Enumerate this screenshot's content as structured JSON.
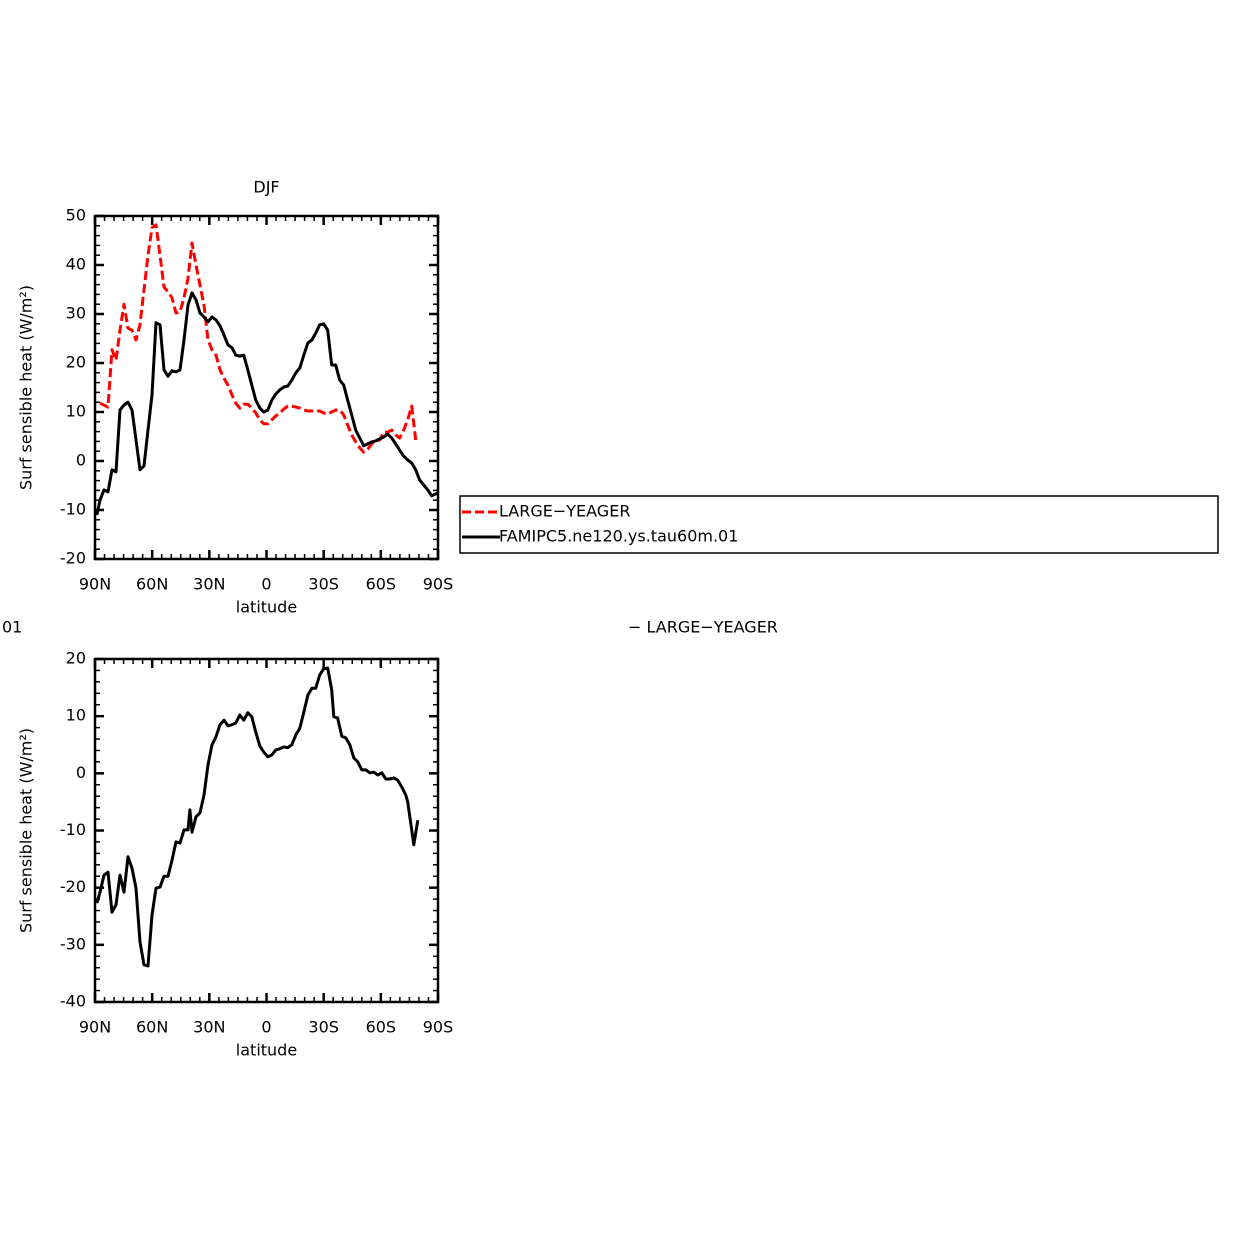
{
  "chart_data": [
    {
      "type": "line",
      "title": "DJF",
      "xlabel": "latitude",
      "ylabel": "Surf sensible heat (W/m²)",
      "xlim": [
        90,
        -90
      ],
      "ylim": [
        -20,
        50
      ],
      "xticks": [
        {
          "value": 90,
          "label": "90N"
        },
        {
          "value": 60,
          "label": "60N"
        },
        {
          "value": 30,
          "label": "30N"
        },
        {
          "value": 0,
          "label": "0"
        },
        {
          "value": -30,
          "label": "30S"
        },
        {
          "value": -60,
          "label": "60S"
        },
        {
          "value": -90,
          "label": "90S"
        }
      ],
      "yticks": [
        -20,
        -10,
        0,
        10,
        20,
        30,
        40,
        50
      ],
      "legend": "right",
      "series": [
        {
          "name": "LARGE−YEAGER",
          "color": "#ff0000",
          "dash": true,
          "x": [
            87.4,
            83.2,
            81.1,
            79,
            76.9,
            74.8,
            72.7,
            70.6,
            68.5,
            66.4,
            64.3,
            62.2,
            60.1,
            58,
            55.9,
            53.8,
            51.7,
            49.6,
            47.5,
            45.4,
            43.3,
            41.2,
            39.1,
            37,
            34.9,
            32.8,
            30.7,
            28.6,
            26.5,
            24.4,
            22.3,
            20.2,
            18.1,
            16.1,
            14,
            11.9,
            9.8,
            7.7,
            5.6,
            3.5,
            1.4,
            -0.7,
            -2.8,
            -4.9,
            -7,
            -9.1,
            -11.2,
            -13.3,
            -15.4,
            -17.5,
            -19.6,
            -21.7,
            -23.8,
            -25.8,
            -27.9,
            -30,
            -32.1,
            -34.2,
            -36.3,
            -38.4,
            -40.5,
            -42.6,
            -44.7,
            -46.8,
            -48.9,
            -51,
            -53.1,
            -55.2,
            -57.3,
            -59.4,
            -61.5,
            -63.6,
            -65.7,
            -67.8,
            -69.9,
            -72,
            -74.1,
            -76.2,
            -78.3
          ],
          "values": [
            11.8,
            11,
            22.7,
            20.6,
            26.7,
            32,
            27.1,
            26.7,
            24.7,
            27.8,
            34.9,
            42,
            47.6,
            48.2,
            42,
            35.5,
            34.5,
            33.3,
            30.2,
            30.4,
            33.3,
            37.3,
            44.5,
            40,
            35.9,
            31.8,
            24.7,
            22.7,
            21.6,
            18.6,
            16.9,
            15.5,
            13.5,
            11.8,
            10.8,
            11.6,
            11.6,
            10.8,
            9.8,
            8.4,
            7.6,
            7.6,
            8.4,
            9.2,
            9.8,
            10.6,
            11.2,
            11.2,
            11,
            10.8,
            10.4,
            10.2,
            10.2,
            10.2,
            10.2,
            9.8,
            9.6,
            10,
            10.4,
            10.4,
            9.4,
            7.3,
            5.3,
            3.9,
            2.7,
            1.8,
            2.4,
            3.5,
            4.1,
            4.3,
            5.9,
            5.9,
            6.3,
            5.3,
            4.7,
            6.3,
            8.4,
            11.2,
            4.3
          ]
        },
        {
          "name": "FAMIPC5.ne120.ys.tau60m.01",
          "color": "#000000",
          "dash": false,
          "x": [
            89,
            87.4,
            85.3,
            83.2,
            81.1,
            79,
            76.9,
            74.8,
            72.7,
            70.6,
            68.5,
            66.4,
            64.3,
            62.2,
            60.1,
            58,
            55.9,
            53.8,
            51.7,
            49.6,
            47.5,
            45.4,
            43.3,
            41.2,
            39.1,
            37,
            34.9,
            32.8,
            30.7,
            28.6,
            26.5,
            24.4,
            22.3,
            20.2,
            18.1,
            16.1,
            14,
            11.9,
            9.8,
            7.7,
            5.6,
            3.5,
            1.4,
            -0.7,
            -2.8,
            -4.9,
            -7,
            -9.1,
            -11.2,
            -13.3,
            -15.4,
            -17.5,
            -19.6,
            -21.7,
            -23.8,
            -25.8,
            -27.9,
            -30,
            -32.1,
            -34.2,
            -36.3,
            -38.4,
            -40.5,
            -42.6,
            -44.7,
            -46.8,
            -48.9,
            -51,
            -53.1,
            -55.2,
            -57.3,
            -59.4,
            -61.5,
            -63.6,
            -65.7,
            -67.8,
            -69.9,
            -72,
            -74.1,
            -76.2,
            -78.3,
            -80.4,
            -82.5,
            -84.6,
            -86.7,
            -90
          ],
          "values": [
            -11,
            -8,
            -5.9,
            -6.3,
            -1.8,
            -2.2,
            10.4,
            11.4,
            12,
            10.4,
            4.3,
            -1.8,
            -1,
            6.3,
            13.5,
            28.2,
            27.8,
            18.6,
            17.3,
            18.4,
            18.2,
            18.6,
            24.7,
            31.8,
            34.3,
            32.9,
            30.2,
            29.4,
            28.4,
            29.4,
            28.8,
            27.6,
            25.7,
            23.7,
            23.1,
            21.6,
            21.4,
            21.6,
            18.6,
            15.5,
            12.4,
            10.8,
            10,
            10.4,
            12.4,
            13.7,
            14.5,
            15.1,
            15.3,
            16.5,
            18,
            19,
            21.6,
            24.1,
            24.7,
            26.1,
            27.8,
            28,
            26.7,
            19.6,
            19.6,
            16.5,
            15.5,
            12.4,
            9.4,
            6.3,
            4.7,
            3.1,
            3.5,
            3.9,
            4.1,
            4.5,
            4.9,
            5.5,
            4.7,
            3.5,
            2.2,
            1,
            0.2,
            -0.4,
            -1.8,
            -3.9,
            -4.9,
            -5.9,
            -7.1,
            -6.5
          ]
        }
      ]
    },
    {
      "type": "line",
      "title": "01",
      "right_title": "− LARGE−YEAGER",
      "xlabel": "latitude",
      "ylabel": "Surf sensible heat (W/m²)",
      "xlim": [
        90,
        -90
      ],
      "ylim": [
        -40,
        20
      ],
      "xticks": [
        {
          "value": 90,
          "label": "90N"
        },
        {
          "value": 60,
          "label": "60N"
        },
        {
          "value": 30,
          "label": "30N"
        },
        {
          "value": 0,
          "label": "0"
        },
        {
          "value": -30,
          "label": "30S"
        },
        {
          "value": -60,
          "label": "60S"
        },
        {
          "value": -90,
          "label": "90S"
        }
      ],
      "yticks": [
        -40,
        -30,
        -20,
        -10,
        0,
        10,
        20
      ],
      "series": [
        {
          "color": "#000000",
          "dash": false,
          "x": [
            89,
            87.4,
            85.3,
            83.2,
            81.1,
            79,
            76.9,
            74.8,
            72.7,
            70.6,
            68.5,
            66.4,
            64.3,
            62.2,
            60.1,
            58,
            55.9,
            53.8,
            51.7,
            49.6,
            47.5,
            45.4,
            43.3,
            41.2,
            40.2,
            39.1,
            37,
            34.9,
            32.8,
            30.7,
            28.6,
            26.5,
            24.4,
            22.3,
            20.2,
            18.1,
            16.1,
            14,
            11.9,
            9.8,
            7.7,
            5.6,
            3.5,
            1.4,
            -0.7,
            -2.8,
            -4.9,
            -7,
            -9.1,
            -11.2,
            -13.3,
            -15.4,
            -17.5,
            -19.6,
            -21.7,
            -23.8,
            -25.8,
            -27.9,
            -30,
            -32.1,
            -34.2,
            -35.3,
            -37.3,
            -39.5,
            -41.6,
            -43.7,
            -45.8,
            -47.9,
            -50,
            -52.1,
            -54.2,
            -56.3,
            -58.4,
            -60.5,
            -62.6,
            -64.7,
            -66.8,
            -68.9,
            -71,
            -73.1,
            -74.1,
            -76.2,
            -77.3,
            -79.4
          ],
          "values": [
            -22.7,
            -20.8,
            -17.8,
            -17.3,
            -24.3,
            -23,
            -17.8,
            -20.8,
            -14.6,
            -16.6,
            -20.1,
            -29.5,
            -33.5,
            -33.7,
            -24.8,
            -20.1,
            -19.9,
            -18,
            -18,
            -15.2,
            -12,
            -12.2,
            -9.9,
            -9.9,
            -6.4,
            -10.3,
            -7.6,
            -6.9,
            -3.8,
            1.5,
            5,
            6.4,
            8.5,
            9.3,
            8.3,
            8.5,
            8.8,
            10.2,
            9.3,
            10.6,
            9.9,
            7.2,
            4.8,
            3.7,
            2.9,
            3.2,
            4.1,
            4.3,
            4.6,
            4.5,
            5,
            6.7,
            7.9,
            10.7,
            13.7,
            14.9,
            14.9,
            17.2,
            18.3,
            18.4,
            14.6,
            9.9,
            9.7,
            6.5,
            6.2,
            5,
            2.7,
            2,
            0.6,
            0.6,
            0.1,
            0.2,
            -0.3,
            0.1,
            -1,
            -1,
            -0.8,
            -1.2,
            -2.4,
            -3.8,
            -5,
            -9.9,
            -12.5,
            -8.2
          ]
        }
      ]
    }
  ]
}
